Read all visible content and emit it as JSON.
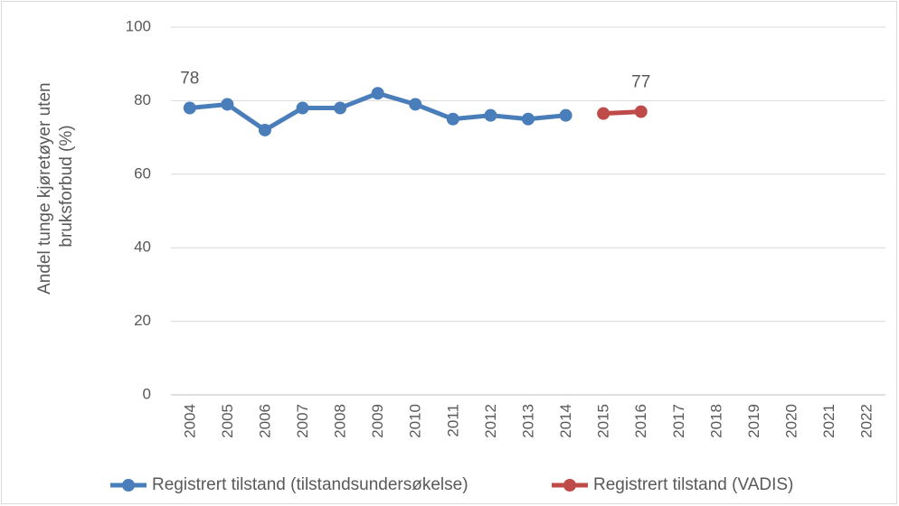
{
  "chart_data": {
    "type": "line",
    "y_label": [
      "Andel tunge kjøretøyer uten",
      "bruksforbud (%)"
    ],
    "categories": [
      "2004",
      "2005",
      "2006",
      "2007",
      "2008",
      "2009",
      "2010",
      "2011",
      "2012",
      "2013",
      "2014",
      "2015",
      "2016",
      "2017",
      "2018",
      "2019",
      "2020",
      "2021",
      "2022"
    ],
    "series": [
      {
        "name": "Registrert tilstand (tilstandsundersøkelse)",
        "color": "#4a7ebb",
        "values": [
          78,
          79,
          72,
          78,
          78,
          82,
          79,
          75,
          76,
          75,
          76,
          null,
          null,
          null,
          null,
          null,
          null,
          null,
          null
        ],
        "labeled": [
          0
        ]
      },
      {
        "name": "Registrert tilstand (VADIS)",
        "color": "#be4b48",
        "values": [
          null,
          null,
          null,
          null,
          null,
          null,
          null,
          null,
          null,
          null,
          null,
          76.5,
          77,
          null,
          null,
          null,
          null,
          null,
          null
        ],
        "labeled": [
          12
        ]
      }
    ],
    "ylim": [
      0,
      100
    ],
    "yticks": [
      0,
      20,
      40,
      60,
      80,
      100
    ],
    "grid": true,
    "legend": "bottom"
  }
}
